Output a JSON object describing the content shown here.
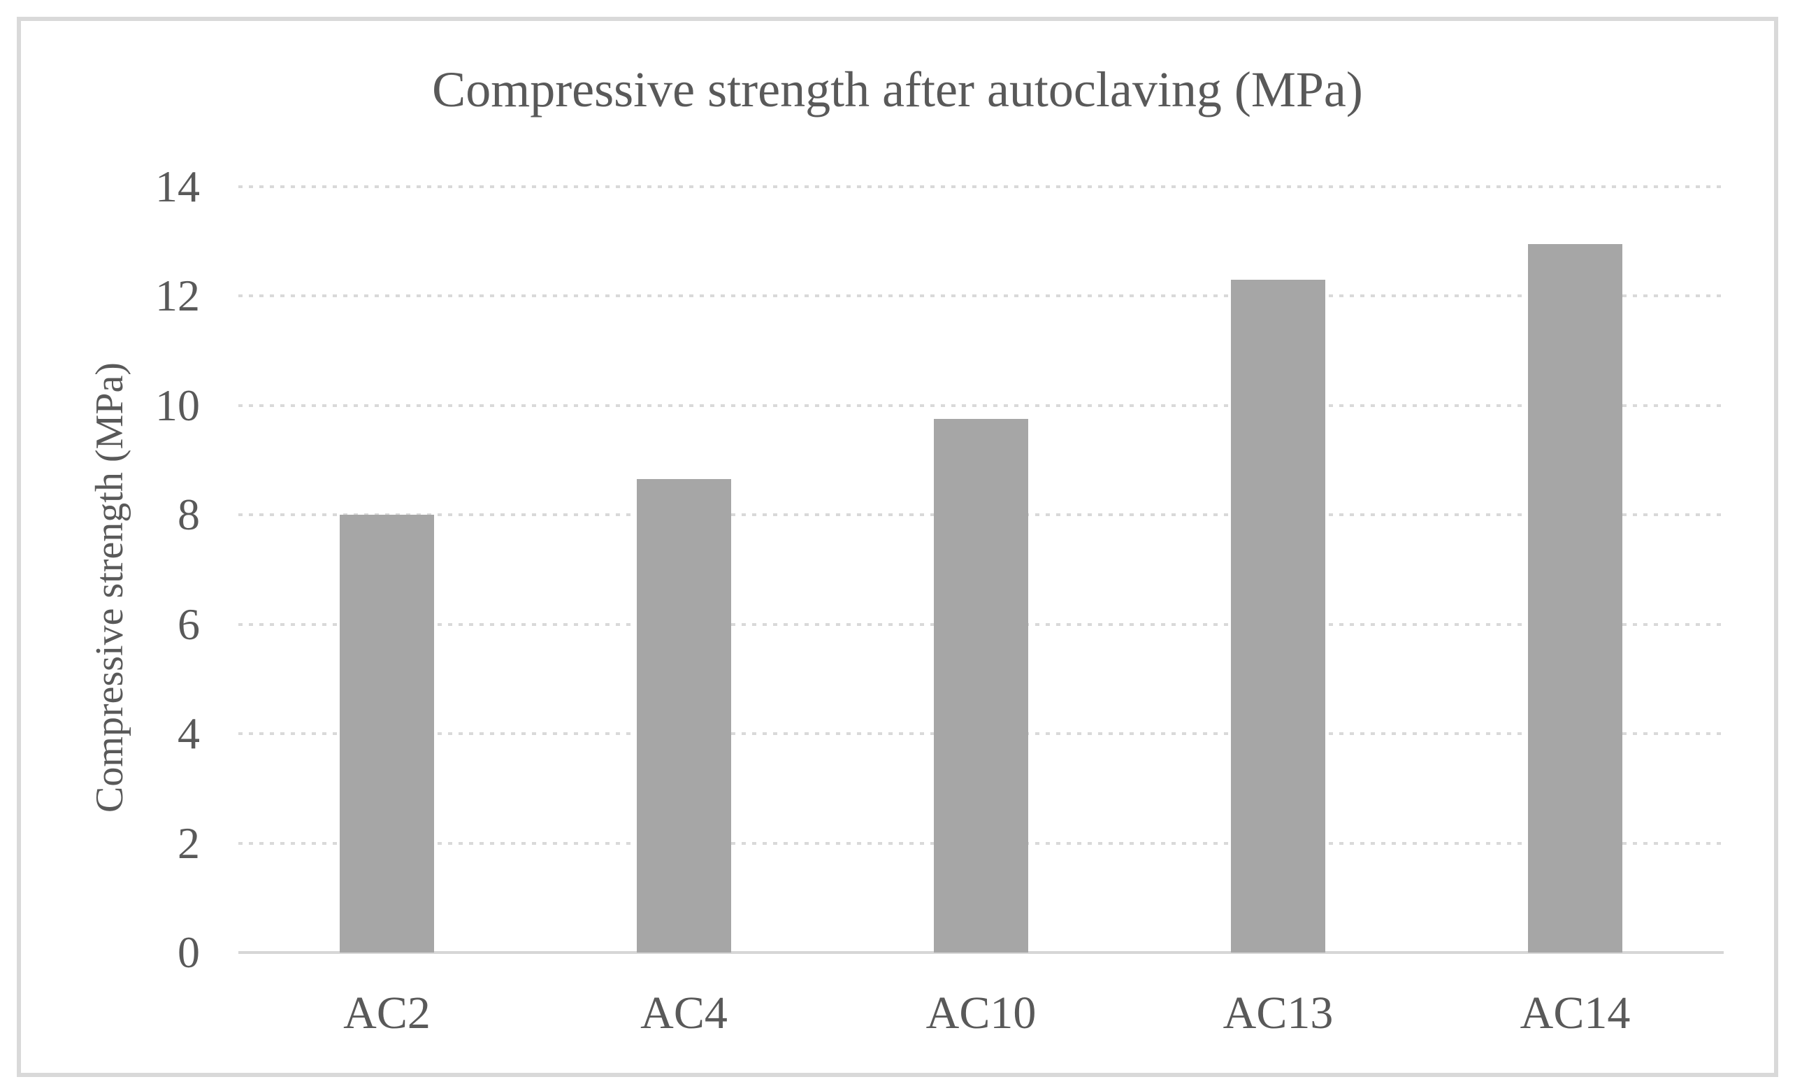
{
  "figure": {
    "background_color": "#ffffff",
    "border_color": "#d9d9d9"
  },
  "chart_data": {
    "type": "bar",
    "title": "Compressive strength after autoclaving (MPa)",
    "xlabel": "",
    "ylabel": "Compressive strength (MPa)",
    "categories": [
      "AC2",
      "AC4",
      "AC10",
      "AC13",
      "AC14"
    ],
    "values": [
      8.0,
      8.65,
      9.75,
      12.3,
      12.95
    ],
    "ylim": [
      0,
      14
    ],
    "yticks": [
      0,
      2,
      4,
      6,
      8,
      10,
      12,
      14
    ],
    "grid": "horizontal-dotted",
    "legend_position": "none",
    "series_name": "Compressive strength after autoclaving (MPa)",
    "bar_color": "#a6a6a6",
    "text_color": "#595959",
    "gridline_color": "#d9d9d9",
    "axis_line_color": "#d6d6d6"
  }
}
